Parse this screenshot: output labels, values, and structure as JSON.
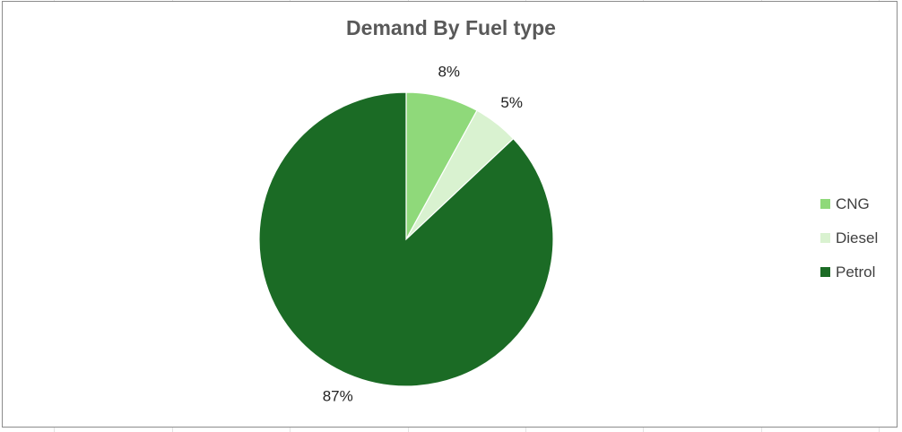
{
  "chart_data": {
    "type": "pie",
    "title": "Demand By Fuel type",
    "categories": [
      "CNG",
      "Diesel",
      "Petrol"
    ],
    "values": [
      8,
      5,
      87
    ],
    "labels": [
      "8%",
      "5%",
      "87%"
    ],
    "colors": [
      "#8fd97a",
      "#d9f2d0",
      "#1b6b25"
    ],
    "legend_position": "right",
    "legend": [
      {
        "name": "CNG",
        "color": "#8fd97a"
      },
      {
        "name": "Diesel",
        "color": "#d9f2d0"
      },
      {
        "name": "Petrol",
        "color": "#1b6b25"
      }
    ]
  }
}
